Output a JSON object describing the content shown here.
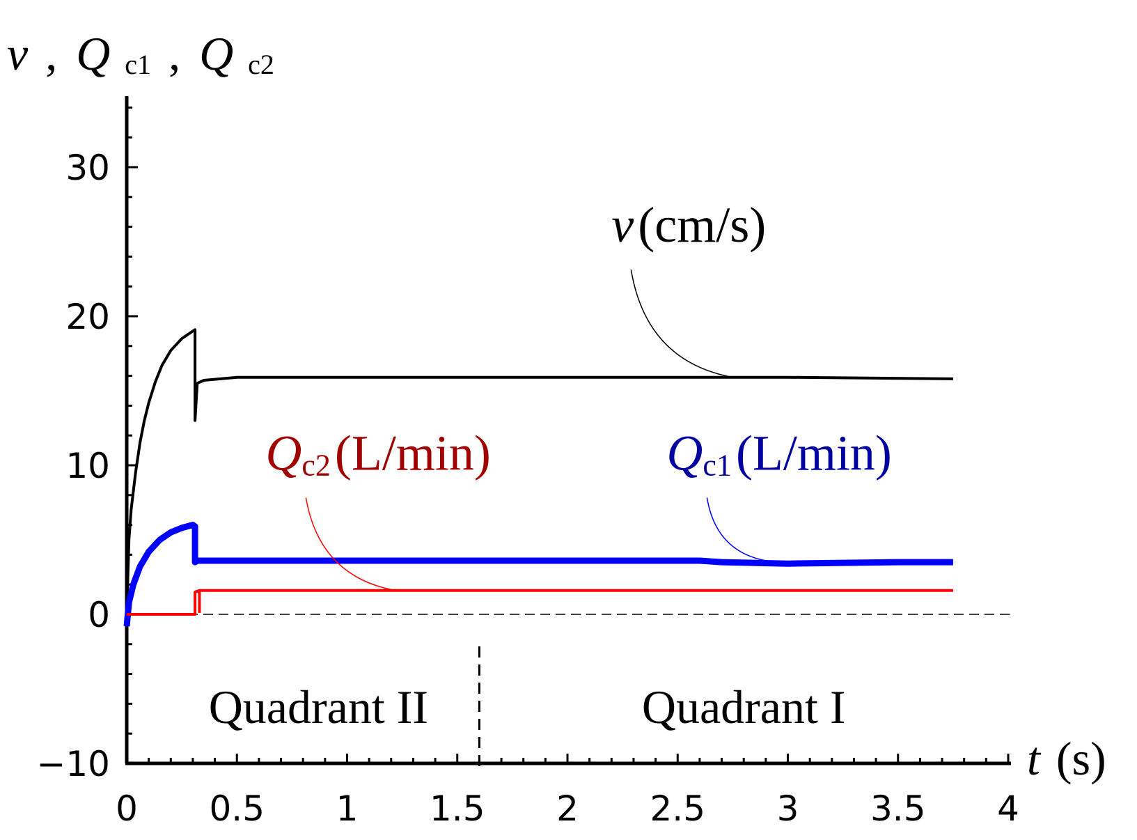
{
  "chart_data": {
    "type": "line",
    "ylabel": {
      "v": "v",
      "sep1": ",",
      "q1": "Q",
      "q1sub": "c1",
      "sep2": ",",
      "q2": "Q",
      "q2sub": "c2"
    },
    "xlabel": {
      "symbol": "t",
      "unit": "s"
    },
    "xlim": [
      0,
      4
    ],
    "ylim": [
      -10,
      35
    ],
    "x_ticks": [
      "0",
      "0.5",
      "1",
      "1.5",
      "2",
      "2.5",
      "3",
      "3.5",
      "4"
    ],
    "x_tick_values": [
      0,
      0.5,
      1,
      1.5,
      2,
      2.5,
      3,
      3.5,
      4
    ],
    "y_ticks": [
      "−10",
      "0",
      "10",
      "20",
      "30"
    ],
    "y_tick_values": [
      -10,
      0,
      10,
      20,
      30
    ],
    "zero_line": "dashed",
    "divider": {
      "x": 1.6,
      "style": "dashed"
    },
    "regions": [
      {
        "label": "Quadrant II",
        "x_center": 0.87
      },
      {
        "label": "Quadrant I",
        "x_center": 2.8
      }
    ],
    "series": [
      {
        "key": "v",
        "color": "#000000",
        "label": {
          "symbol": "v",
          "sub": "",
          "unit": "cm/s",
          "x": 2.2,
          "y": 25.0,
          "leader_to": [
            2.75,
            15.9
          ]
        },
        "points": [
          [
            0,
            0
          ],
          [
            0.01,
            5
          ],
          [
            0.02,
            7
          ],
          [
            0.04,
            9.5
          ],
          [
            0.06,
            11.5
          ],
          [
            0.08,
            13
          ],
          [
            0.1,
            14.2
          ],
          [
            0.13,
            15.6
          ],
          [
            0.16,
            16.7
          ],
          [
            0.2,
            17.7
          ],
          [
            0.25,
            18.5
          ],
          [
            0.3,
            19.0
          ],
          [
            0.31,
            19.1
          ],
          [
            0.31,
            13.0
          ],
          [
            0.32,
            15.5
          ],
          [
            0.35,
            15.7
          ],
          [
            0.5,
            15.9
          ],
          [
            1.0,
            15.9
          ],
          [
            2.0,
            15.9
          ],
          [
            3.0,
            15.9
          ],
          [
            3.75,
            15.8
          ]
        ]
      },
      {
        "key": "Qc1",
        "color": "#0000ff",
        "label": {
          "symbol": "Q",
          "sub": "c1",
          "unit": "L/min",
          "x": 2.45,
          "y": 9.7,
          "leader_to": [
            2.9,
            3.6
          ]
        },
        "points": [
          [
            0,
            -0.8
          ],
          [
            0.01,
            0.8
          ],
          [
            0.03,
            2.0
          ],
          [
            0.06,
            3.2
          ],
          [
            0.1,
            4.2
          ],
          [
            0.15,
            5.0
          ],
          [
            0.2,
            5.5
          ],
          [
            0.25,
            5.8
          ],
          [
            0.3,
            6.0
          ],
          [
            0.31,
            5.9
          ],
          [
            0.31,
            3.5
          ],
          [
            0.32,
            3.6
          ],
          [
            1.0,
            3.6
          ],
          [
            2.6,
            3.6
          ],
          [
            2.7,
            3.5
          ],
          [
            3.0,
            3.4
          ],
          [
            3.5,
            3.5
          ],
          [
            3.75,
            3.5
          ]
        ]
      },
      {
        "key": "Qc2",
        "color": "#ff0000",
        "label": {
          "symbol": "Q",
          "sub": "c2",
          "unit": "L/min",
          "x": 0.63,
          "y": 9.7,
          "leader_to": [
            1.22,
            1.6
          ]
        },
        "points": [
          [
            0,
            0
          ],
          [
            0.31,
            0
          ],
          [
            0.31,
            1.5
          ],
          [
            0.33,
            1.6
          ],
          [
            1.0,
            1.6
          ],
          [
            2.0,
            1.6
          ],
          [
            3.0,
            1.6
          ],
          [
            3.75,
            1.6
          ]
        ]
      }
    ],
    "label_colors": {
      "v": "#000000",
      "Qc1": "#0000a0",
      "Qc2": "#a00000"
    }
  }
}
